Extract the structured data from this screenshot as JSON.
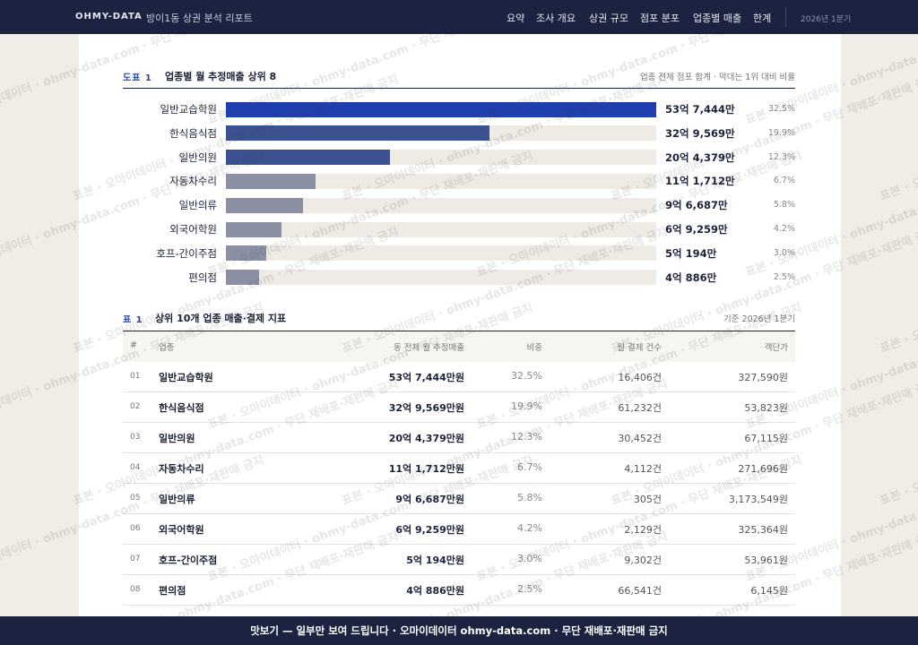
{
  "nav": {
    "brand": "OHMY-DATA",
    "title": "방이1동 상권 분석 리포트",
    "links": [
      "요약",
      "조사 개요",
      "상권 규모",
      "점포 분포",
      "업종별 매출",
      "한계"
    ],
    "period": "2026년 1분기"
  },
  "chart_data": {
    "type": "bar",
    "orientation": "horizontal",
    "figure_label": "도표 1",
    "title": "업종별 월 추정매출 상위 8",
    "note": "업종 전체 점포 합계 · 막대는 1위 대비 비율",
    "categories": [
      "일반교습학원",
      "한식음식점",
      "일반의원",
      "자동차수리",
      "일반의류",
      "외국어학원",
      "호프-간이주점",
      "편의점"
    ],
    "values": [
      537444,
      329569,
      204379,
      111712,
      96687,
      69259,
      50194,
      40886
    ],
    "value_labels": [
      "53억 7,444만",
      "32억 9,569만",
      "20억 4,379만",
      "11억 1,712만",
      "9억 6,687만",
      "6억 9,259만",
      "5억 194만",
      "4억 886만"
    ],
    "shares": [
      "32.5%",
      "19.9%",
      "12.3%",
      "6.7%",
      "5.8%",
      "4.2%",
      "3.0%",
      "2.5%"
    ],
    "colors": [
      "#1f3fae",
      "#3b5190",
      "#3b5190",
      "#8990a3",
      "#8990a3",
      "#8990a3",
      "#8990a3",
      "#8990a3"
    ]
  },
  "table": {
    "label": "표 1",
    "title": "상위 10개 업종 매출·결제 지표",
    "note": "기준 2026년 1분기",
    "columns": [
      "#",
      "업종",
      "동 전체 월 추정매출",
      "비중",
      "월 결제 건수",
      "객단가"
    ],
    "rows": [
      [
        "01",
        "일반교습학원",
        "53억 7,444만원",
        "32.5%",
        "16,406건",
        "327,590원"
      ],
      [
        "02",
        "한식음식점",
        "32억 9,569만원",
        "19.9%",
        "61,232건",
        "53,823원"
      ],
      [
        "03",
        "일반의원",
        "20억 4,379만원",
        "12.3%",
        "30,452건",
        "67,115원"
      ],
      [
        "04",
        "자동차수리",
        "11억 1,712만원",
        "6.7%",
        "4,112건",
        "271,696원"
      ],
      [
        "05",
        "일반의류",
        "9억 6,687만원",
        "5.8%",
        "305건",
        "3,173,549원"
      ],
      [
        "06",
        "외국어학원",
        "6억 9,259만원",
        "4.2%",
        "2,129건",
        "325,364원"
      ],
      [
        "07",
        "호프-간이주점",
        "5억 194만원",
        "3.0%",
        "9,302건",
        "53,961원"
      ],
      [
        "08",
        "편의점",
        "4억 886만원",
        "2.5%",
        "66,541건",
        "6,145원"
      ]
    ]
  },
  "watermark": "표본 · 오마이데이터 · ohmy-data.com · 무단 재배포·재판매 금지",
  "footer": "맛보기 — 일부만 보여 드립니다 · 오마이데이터 ohmy-data.com · 무단 재배포·재판매 금지"
}
